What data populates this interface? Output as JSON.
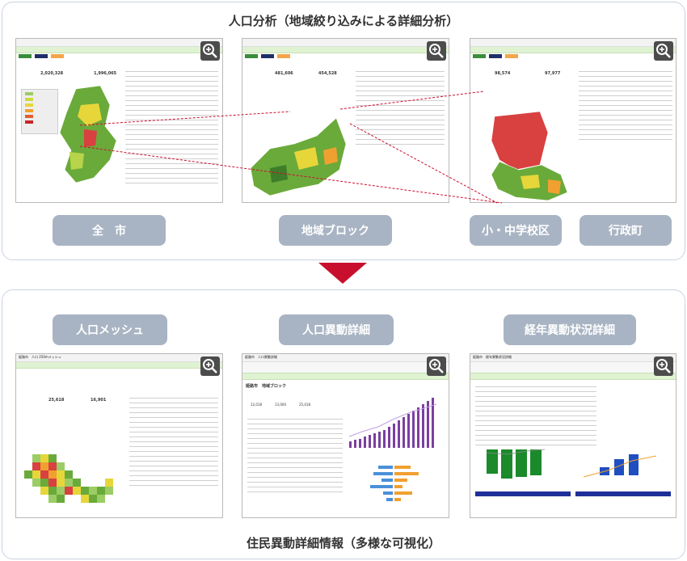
{
  "top_panel": {
    "title": "人口分析（地域絞り込みによる詳細分析）",
    "buttons": [
      {
        "label": "全　市"
      },
      {
        "label": "地域ブロック"
      },
      {
        "label": "小・中学校区"
      },
      {
        "label": "行政町"
      }
    ],
    "screenshots": [
      {
        "stat_left": "2,020,328",
        "stat_right": "1,996,065"
      },
      {
        "stat_left": "481,606",
        "stat_right": "454,528"
      },
      {
        "stat_left": "98,574",
        "stat_right": "97,977"
      }
    ]
  },
  "bottom_panel": {
    "title": "住民異動詳細情報（多様な可視化）",
    "buttons": [
      {
        "label": "人口メッシュ"
      },
      {
        "label": "人口異動詳細"
      },
      {
        "label": "経年異動状況詳細"
      }
    ],
    "screenshots": [
      {
        "header": "姫路市　人口 250mメッシュ",
        "stat_left": "25,618",
        "stat_right": "16,901"
      },
      {
        "header": "姫路市　人口異動詳細",
        "sub": "姫路市　地域ブロック",
        "stat_left": "12,018",
        "stat_right": "13,000",
        "stat_total": "25,018"
      },
      {
        "header": "姫路市　経年異動状況詳細"
      }
    ]
  },
  "colors": {
    "panel_border": "#c9d3de",
    "pill": "#a8b4c3",
    "arrow": "#c8102e",
    "connector": "#c8102e",
    "map_red": "#d94040",
    "map_green": "#6aaa3a",
    "map_yellow": "#e6d63a"
  },
  "icons": [
    "zoom-in-icon"
  ]
}
